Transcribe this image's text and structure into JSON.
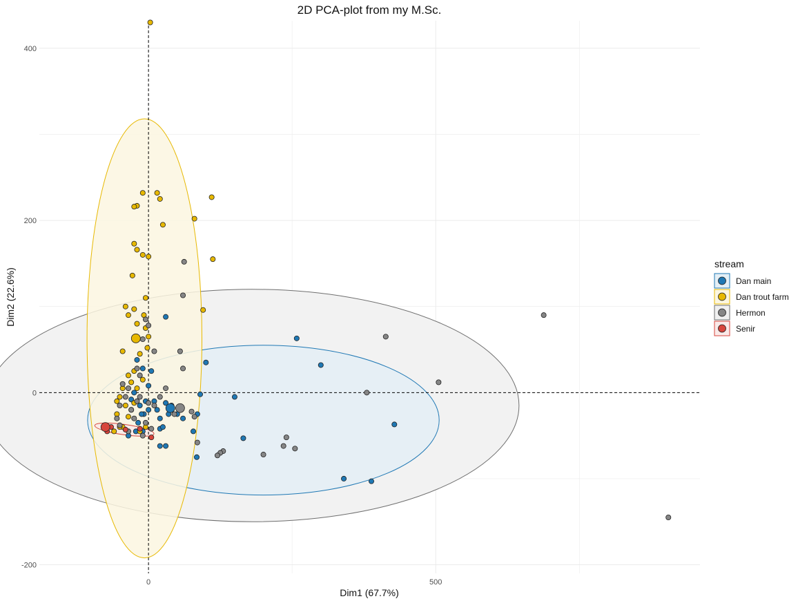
{
  "chart_data": {
    "type": "scatter",
    "title": "2D PCA-plot from my M.Sc.",
    "xlabel": "Dim1 (67.7%)",
    "ylabel": "Dim2 (22.6%)",
    "xlim": [
      -190,
      960
    ],
    "ylim": [
      -210,
      432
    ],
    "x_ticks": [
      0,
      500
    ],
    "y_ticks": [
      -200,
      0,
      200,
      400
    ],
    "grid": true,
    "legend_position": "right",
    "legend_title": "stream",
    "series": [
      {
        "name": "Dan main",
        "color": "#1f78b4",
        "points": [
          [
            258,
            63
          ],
          [
            300,
            32
          ],
          [
            150,
            -5
          ],
          [
            165,
            -53
          ],
          [
            340,
            -100
          ],
          [
            388,
            -103
          ],
          [
            428,
            -37
          ],
          [
            100,
            35
          ],
          [
            90,
            -2
          ],
          [
            85,
            -25
          ],
          [
            78,
            -45
          ],
          [
            84,
            -75
          ],
          [
            -10,
            28
          ],
          [
            -20,
            38
          ],
          [
            -25,
            0
          ],
          [
            -30,
            -8
          ],
          [
            -15,
            -15
          ],
          [
            10,
            -10
          ],
          [
            15,
            -20
          ],
          [
            20,
            -30
          ],
          [
            20,
            -42
          ],
          [
            25,
            -40
          ],
          [
            30,
            -12
          ],
          [
            35,
            -25
          ],
          [
            40,
            -15
          ],
          [
            50,
            -25
          ],
          [
            60,
            -30
          ],
          [
            -5,
            -10
          ],
          [
            0,
            -20
          ],
          [
            -8,
            -25
          ],
          [
            -18,
            -35
          ],
          [
            -22,
            -45
          ],
          [
            -35,
            -50
          ],
          [
            -10,
            -45
          ],
          [
            5,
            25
          ],
          [
            30,
            88
          ],
          [
            20,
            -62
          ],
          [
            30,
            -62
          ],
          [
            -12,
            -25
          ],
          [
            0,
            8
          ]
        ],
        "centroid": [
          38,
          -18
        ],
        "ellipse": {
          "cx": 200,
          "cy": -32,
          "rx": 306,
          "ry": 87,
          "angle": 0
        }
      },
      {
        "name": "Dan trout farm",
        "color": "#e7b800",
        "points": [
          [
            3,
            430
          ],
          [
            -10,
            232
          ],
          [
            15,
            232
          ],
          [
            20,
            225
          ],
          [
            -20,
            217
          ],
          [
            -25,
            216
          ],
          [
            110,
            227
          ],
          [
            80,
            202
          ],
          [
            25,
            195
          ],
          [
            -25,
            173
          ],
          [
            -20,
            166
          ],
          [
            -10,
            160
          ],
          [
            0,
            158
          ],
          [
            112,
            155
          ],
          [
            -28,
            136
          ],
          [
            -5,
            110
          ],
          [
            -40,
            100
          ],
          [
            -25,
            97
          ],
          [
            -35,
            90
          ],
          [
            -8,
            90
          ],
          [
            -20,
            80
          ],
          [
            95,
            96
          ],
          [
            -5,
            75
          ],
          [
            0,
            65
          ],
          [
            -45,
            48
          ],
          [
            -15,
            45
          ],
          [
            -2,
            52
          ],
          [
            -25,
            25
          ],
          [
            -35,
            20
          ],
          [
            -10,
            15
          ],
          [
            -30,
            12
          ],
          [
            -20,
            5
          ],
          [
            -45,
            5
          ],
          [
            -50,
            -5
          ],
          [
            -40,
            -15
          ],
          [
            -30,
            -20
          ],
          [
            -55,
            -25
          ],
          [
            -45,
            -40
          ],
          [
            -60,
            -45
          ],
          [
            -50,
            -40
          ],
          [
            -25,
            -12
          ],
          [
            -15,
            -45
          ],
          [
            -5,
            -40
          ],
          [
            -55,
            -10
          ],
          [
            -35,
            -28
          ]
        ],
        "centroid": [
          -22,
          63
        ],
        "ellipse": {
          "cx": -7,
          "cy": 63,
          "rx": 100,
          "ry": 255,
          "angle": 0
        }
      },
      {
        "name": "Hermon",
        "color": "#868686",
        "points": [
          [
            688,
            90
          ],
          [
            905,
            -145
          ],
          [
            413,
            65
          ],
          [
            505,
            12
          ],
          [
            380,
            0
          ],
          [
            240,
            -52
          ],
          [
            255,
            -65
          ],
          [
            235,
            -62
          ],
          [
            200,
            -72
          ],
          [
            130,
            -68
          ],
          [
            125,
            -70
          ],
          [
            120,
            -73
          ],
          [
            85,
            -58
          ],
          [
            80,
            -28
          ],
          [
            75,
            -22
          ],
          [
            60,
            113
          ],
          [
            55,
            48
          ],
          [
            60,
            28
          ],
          [
            62,
            152
          ],
          [
            -5,
            85
          ],
          [
            -10,
            62
          ],
          [
            0,
            78
          ],
          [
            10,
            48
          ],
          [
            -20,
            28
          ],
          [
            -30,
            -20
          ],
          [
            -25,
            -30
          ],
          [
            -40,
            -5
          ],
          [
            -45,
            10
          ],
          [
            -50,
            -15
          ],
          [
            -35,
            5
          ],
          [
            -20,
            -10
          ],
          [
            -15,
            20
          ],
          [
            -5,
            -35
          ],
          [
            5,
            -42
          ],
          [
            10,
            -15
          ],
          [
            20,
            -5
          ],
          [
            30,
            5
          ],
          [
            40,
            -20
          ],
          [
            45,
            -25
          ],
          [
            -10,
            -50
          ],
          [
            -35,
            -45
          ],
          [
            -50,
            -38
          ],
          [
            -55,
            -30
          ],
          [
            -15,
            -5
          ],
          [
            0,
            -12
          ]
        ],
        "centroid": [
          55,
          -18
        ],
        "ellipse": {
          "cx": 180,
          "cy": -15,
          "rx": 465,
          "ry": 135,
          "angle": 0
        }
      },
      {
        "name": "Senir",
        "color": "#d7453c",
        "points": [
          [
            -75,
            -38
          ],
          [
            -72,
            -45
          ],
          [
            -65,
            -40
          ],
          [
            -40,
            -43
          ],
          [
            -15,
            -42
          ],
          [
            5,
            -52
          ]
        ],
        "centroid": [
          -75,
          -40
        ],
        "ellipse": {
          "cx": -42,
          "cy": -43,
          "rx": 52,
          "ry": 6,
          "angle": 8
        }
      }
    ]
  }
}
